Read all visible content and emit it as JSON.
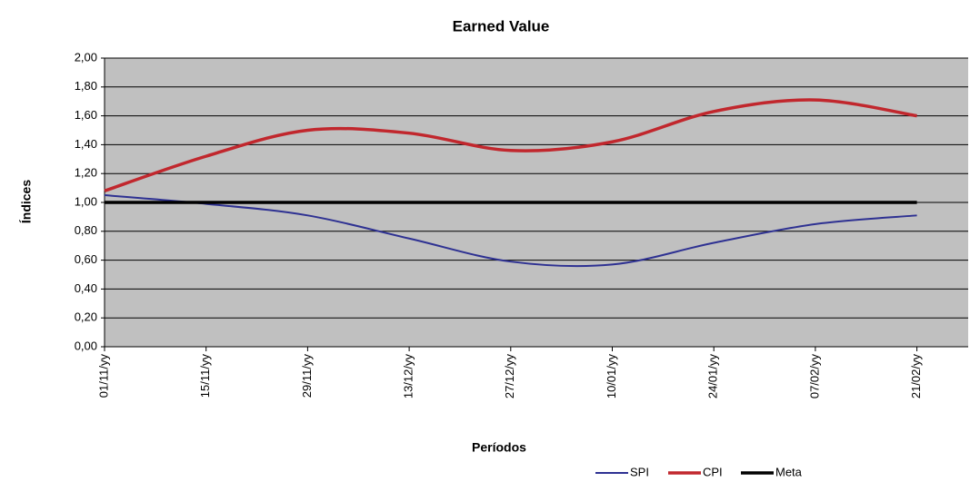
{
  "chart_data": {
    "type": "line",
    "title": "Earned Value",
    "x_label": "Períodos",
    "y_label": "Índices",
    "categories": [
      "01/11/yy",
      "15/11/yy",
      "29/11/yy",
      "13/12/yy",
      "27/12/yy",
      "10/01/yy",
      "24/01/yy",
      "07/02/yy",
      "21/02/yy"
    ],
    "series": [
      {
        "name": "SPI",
        "color": "#2e3192",
        "values": [
          1.05,
          0.99,
          0.91,
          0.75,
          0.59,
          0.57,
          0.72,
          0.85,
          0.91
        ]
      },
      {
        "name": "CPI",
        "color": "#c1272d",
        "values": [
          1.08,
          1.32,
          1.5,
          1.48,
          1.36,
          1.42,
          1.63,
          1.71,
          1.6
        ]
      },
      {
        "name": "Meta",
        "color": "#000000",
        "values": [
          1.0,
          1.0,
          1.0,
          1.0,
          1.0,
          1.0,
          1.0,
          1.0,
          1.0
        ]
      }
    ],
    "ylim": [
      0,
      2
    ],
    "yticks": [
      {
        "value": 0,
        "label": "0,00"
      },
      {
        "value": 0.2,
        "label": "0,20"
      },
      {
        "value": 0.4,
        "label": "0,40"
      },
      {
        "value": 0.6,
        "label": "0,60"
      },
      {
        "value": 0.8,
        "label": "0,80"
      },
      {
        "value": 1,
        "label": "1,00"
      },
      {
        "value": 1.2,
        "label": "1,20"
      },
      {
        "value": 1.4,
        "label": "1,40"
      },
      {
        "value": 1.6,
        "label": "1,60"
      },
      {
        "value": 1.8,
        "label": "1,80"
      },
      {
        "value": 2,
        "label": "2,00"
      }
    ],
    "grid": true,
    "legend": "bottom-right",
    "plot_background": "#c0c0c0"
  }
}
